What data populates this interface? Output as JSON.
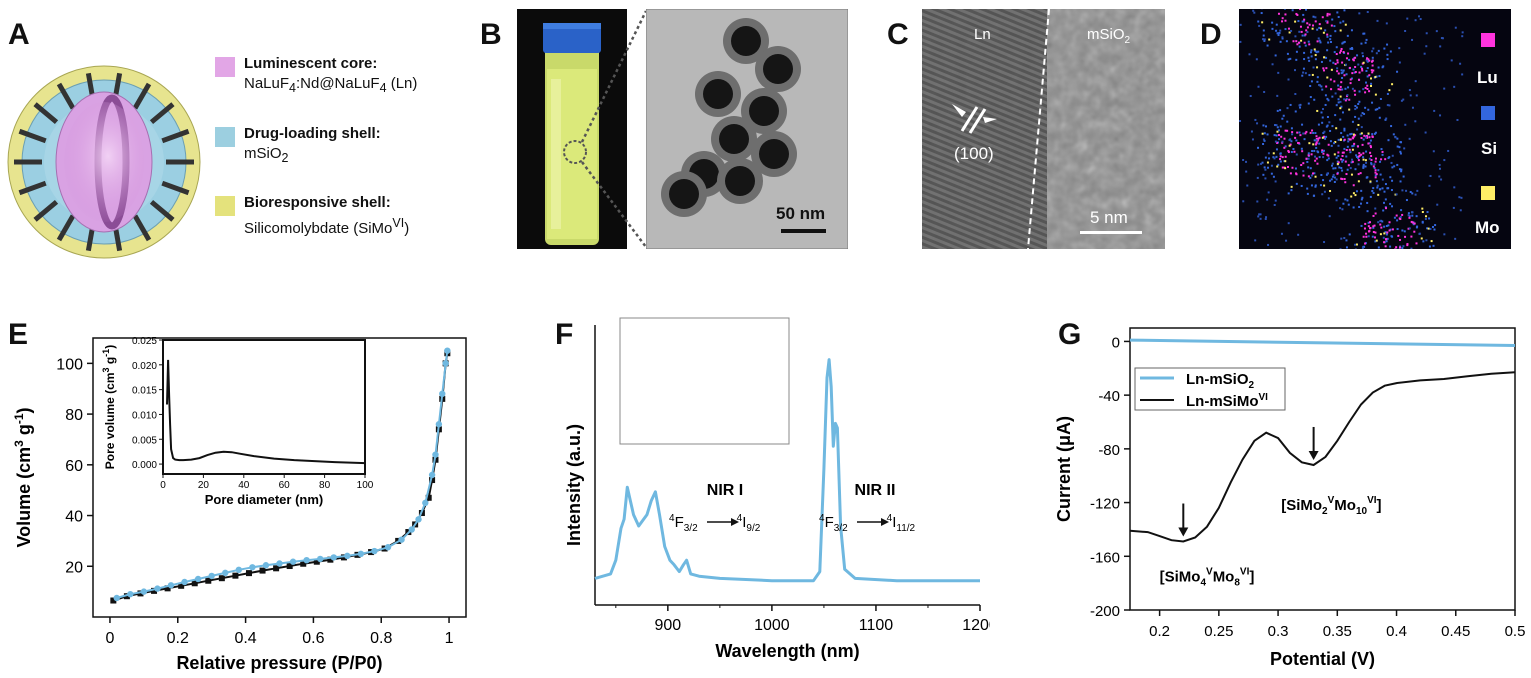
{
  "panels": {
    "a": {
      "letter": "A",
      "legend": [
        {
          "title": "Luminescent core:",
          "desc_main": "NaLuF",
          "desc_sub1": "4",
          "desc_mid": ":Nd@NaLuF",
          "desc_sub2": "4",
          "desc_end": " (Ln)",
          "color": "#e2a6e6"
        },
        {
          "title": "Drug-loading shell:",
          "desc_main": "mSiO",
          "desc_sub1": "2",
          "color": "#9ccfe0"
        },
        {
          "title": "Bioresponsive shell:",
          "desc_main": "Silicomolybdate (SiMo",
          "desc_sup": "VI",
          "desc_end": ")",
          "color": "#e4e27c"
        }
      ]
    },
    "b": {
      "letter": "B",
      "scale": "50 nm"
    },
    "c": {
      "letter": "C",
      "label_ln": "Ln",
      "label_msio": "mSiO",
      "label_msio_sub": "2",
      "plane": "(100)",
      "scale": "5 nm"
    },
    "d": {
      "letter": "D",
      "elements": [
        {
          "name": "Lu",
          "color": "#ff33dd"
        },
        {
          "name": "Si",
          "color": "#3366dd"
        },
        {
          "name": "Mo",
          "color": "#ffee66"
        }
      ]
    },
    "e": {
      "letter": "E"
    },
    "f": {
      "letter": "F"
    },
    "g": {
      "letter": "G"
    }
  },
  "chart_data": [
    {
      "id": "E",
      "type": "line",
      "xlabel": "Relative pressure (P/P0)",
      "ylabel_main": "Volume (cm",
      "ylabel_sup1": "3",
      "ylabel_mid": " g",
      "ylabel_sup2": "-1",
      "ylabel_end": ")",
      "xlim": [
        -0.05,
        1.05
      ],
      "ylim": [
        0,
        110
      ],
      "xticks": [
        "0",
        "0.2",
        "0.4",
        "0.6",
        "0.8",
        "1"
      ],
      "yticks": [
        "20",
        "40",
        "60",
        "80",
        "100"
      ],
      "series": [
        {
          "color": "#111111",
          "marker": "square",
          "x": [
            0.01,
            0.05,
            0.09,
            0.13,
            0.17,
            0.21,
            0.25,
            0.29,
            0.33,
            0.37,
            0.41,
            0.45,
            0.49,
            0.53,
            0.57,
            0.61,
            0.65,
            0.69,
            0.73,
            0.77,
            0.81,
            0.85,
            0.88,
            0.9,
            0.92,
            0.94,
            0.95,
            0.96,
            0.97,
            0.98,
            0.99,
            0.995
          ],
          "y": [
            6.5,
            8.2,
            9.3,
            10.3,
            11.3,
            12.3,
            13.3,
            14.3,
            15.3,
            16.3,
            17.3,
            18.3,
            19.2,
            20.1,
            21.0,
            21.8,
            22.6,
            23.5,
            24.5,
            25.6,
            27.0,
            30.0,
            33.5,
            36.5,
            41.0,
            47.0,
            54.0,
            62.0,
            74.0,
            86.0,
            100.0,
            104.0
          ]
        },
        {
          "color": "#6fb8e0",
          "marker": "circle",
          "x": [
            0.02,
            0.06,
            0.1,
            0.14,
            0.18,
            0.22,
            0.26,
            0.3,
            0.34,
            0.38,
            0.42,
            0.46,
            0.5,
            0.54,
            0.58,
            0.62,
            0.66,
            0.7,
            0.74,
            0.78,
            0.82,
            0.86,
            0.89,
            0.91,
            0.93,
            0.95,
            0.96,
            0.97,
            0.98,
            0.99,
            0.995
          ],
          "y": [
            7.5,
            9.0,
            10.0,
            11.2,
            12.5,
            13.8,
            15.0,
            16.2,
            17.4,
            18.6,
            19.6,
            20.4,
            21.1,
            21.8,
            22.4,
            22.9,
            23.5,
            24.1,
            24.9,
            26.0,
            27.5,
            30.5,
            34.5,
            38.5,
            45.0,
            56.0,
            64.0,
            76.0,
            88.0,
            100.0,
            105.0
          ]
        }
      ],
      "inset": {
        "xlabel": "Pore diameter (nm)",
        "ylabel_main": "Pore volume (cm",
        "ylabel_sup1": "3",
        "ylabel_mid": " g",
        "ylabel_sup2": "-1",
        "ylabel_end": ")",
        "xlim": [
          0,
          100
        ],
        "ylim": [
          -0.002,
          0.025
        ],
        "xticks": [
          "0",
          "20",
          "40",
          "60",
          "80",
          "100"
        ],
        "yticks": [
          "0.000",
          "0.005",
          "0.010",
          "0.015",
          "0.020",
          "0.025"
        ],
        "x": [
          2,
          2.5,
          3,
          3.5,
          4,
          5,
          6,
          8,
          10,
          14,
          18,
          22,
          26,
          30,
          34,
          38,
          45,
          55,
          65,
          75,
          85,
          100
        ],
        "y": [
          0.012,
          0.021,
          0.014,
          0.008,
          0.003,
          0.0012,
          0.0009,
          0.0008,
          0.0008,
          0.0009,
          0.0012,
          0.0018,
          0.0023,
          0.0025,
          0.0024,
          0.0021,
          0.0016,
          0.0011,
          0.0008,
          0.0006,
          0.0004,
          0.0002
        ]
      }
    },
    {
      "id": "F",
      "type": "line",
      "xlabel": "Wavelength (nm)",
      "ylabel": "Intensity (a.u.)",
      "xlim": [
        830,
        1200
      ],
      "xticks": [
        "900",
        "1000",
        "1100",
        "1200"
      ],
      "series": [
        {
          "color": "#6fb8e0",
          "x": [
            830,
            845,
            850,
            855,
            858,
            861,
            864,
            867,
            872,
            880,
            884,
            888,
            892,
            897,
            902,
            906,
            911,
            915,
            918,
            922,
            930,
            950,
            1000,
            1040,
            1046,
            1050,
            1053,
            1055,
            1057,
            1059,
            1061,
            1063,
            1066,
            1070,
            1080,
            1120,
            1200
          ],
          "y": [
            0.02,
            0.04,
            0.1,
            0.24,
            0.28,
            0.42,
            0.36,
            0.3,
            0.25,
            0.3,
            0.36,
            0.4,
            0.3,
            0.16,
            0.1,
            0.08,
            0.05,
            0.08,
            0.1,
            0.04,
            0.03,
            0.02,
            0.01,
            0.01,
            0.05,
            0.5,
            0.9,
            0.98,
            0.86,
            0.6,
            0.7,
            0.68,
            0.25,
            0.06,
            0.02,
            0.01,
            0.01
          ]
        }
      ],
      "annotations": [
        {
          "title": "NIR I",
          "lower_pre": "4",
          "lower_main": "F",
          "lower_sub": "3/2",
          "upper_pre": "4",
          "upper_main": "I",
          "upper_sub": "9/2"
        },
        {
          "title": "NIR II",
          "lower_pre": "4",
          "lower_main": "F",
          "lower_sub": "3/2",
          "upper_pre": "4",
          "upper_main": "I",
          "upper_sub": "11/2"
        }
      ]
    },
    {
      "id": "G",
      "type": "line",
      "xlabel": "Potential (V)",
      "ylabel": "Current (μA)",
      "xlim": [
        0.175,
        0.5
      ],
      "ylim": [
        -200,
        10
      ],
      "xticks": [
        "0.2",
        "0.25",
        "0.3",
        "0.35",
        "0.4",
        "0.45",
        "0.5"
      ],
      "yticks": [
        "0",
        "-40",
        "-80",
        "-120",
        "-160",
        "-200"
      ],
      "series": [
        {
          "name_main": "Ln-mSiO",
          "name_sub": "2",
          "color": "#6fb8e0",
          "x": [
            0.175,
            0.5
          ],
          "y": [
            1,
            -3
          ]
        },
        {
          "name_main": "Ln-mSiMo",
          "name_sup": "VI",
          "color": "#111111",
          "x": [
            0.175,
            0.19,
            0.2,
            0.21,
            0.22,
            0.23,
            0.24,
            0.25,
            0.26,
            0.27,
            0.28,
            0.29,
            0.3,
            0.31,
            0.32,
            0.33,
            0.34,
            0.35,
            0.36,
            0.37,
            0.38,
            0.39,
            0.4,
            0.42,
            0.44,
            0.46,
            0.48,
            0.5
          ],
          "y": [
            -141,
            -142,
            -145,
            -148,
            -149,
            -146,
            -138,
            -124,
            -105,
            -88,
            -74,
            -68,
            -72,
            -83,
            -90,
            -92,
            -86,
            -74,
            -60,
            -47,
            -38,
            -33,
            -31,
            -29,
            -28,
            -26,
            -24,
            -23
          ]
        }
      ],
      "annotations": [
        {
          "pre": "[SiMo",
          "sub1": "2",
          "sup1": "V",
          "mid": "Mo",
          "sub2": "10",
          "sup2": "VI",
          "end": "]",
          "x": 0.33,
          "y": -92
        },
        {
          "pre": "[SiMo",
          "sub1": "4",
          "sup1": "V",
          "mid": "Mo",
          "sub2": "8",
          "sup2": "VI",
          "end": "]",
          "x": 0.22,
          "y": -149
        }
      ]
    }
  ]
}
